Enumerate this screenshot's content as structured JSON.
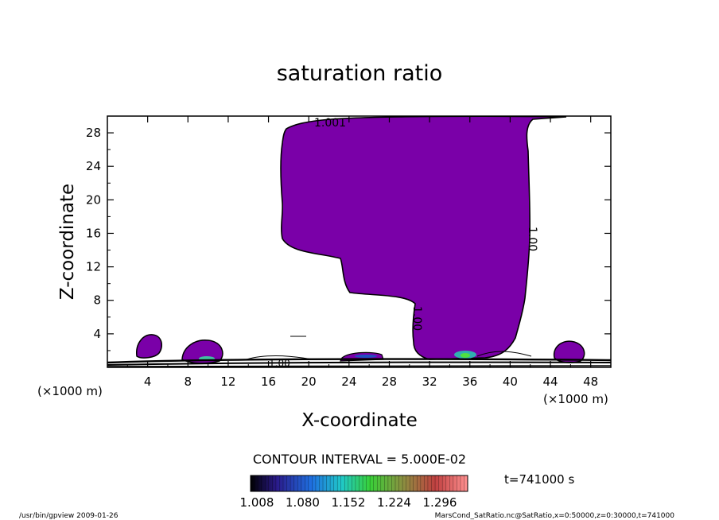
{
  "chart_data": {
    "type": "contour",
    "title": "saturation ratio",
    "xlabel": "X-coordinate",
    "ylabel": "Z-coordinate",
    "x_unit_label": "(×1000 m)",
    "y_unit_label": "(×1000 m)",
    "xlim": [
      0,
      50
    ],
    "ylim": [
      0,
      30
    ],
    "x_ticks": [
      4,
      8,
      12,
      16,
      20,
      24,
      28,
      32,
      36,
      40,
      44,
      48
    ],
    "y_ticks": [
      4,
      8,
      12,
      16,
      20,
      24,
      28
    ],
    "contour_interval_text": "CONTOUR INTERVAL = 5.000E-02",
    "contour_labels": [
      "1.001",
      "1.00",
      "1.00",
      "1.00"
    ],
    "colorbar_ticks": [
      "1.008",
      "1.080",
      "1.152",
      "1.224",
      "1.296"
    ],
    "fill_color": "#7a00a8",
    "time_text": "t=741000 s",
    "footer_left": "/usr/bin/gpview   2009-01-26",
    "footer_right": "MarsCond_SatRatio.nc@SatRatio,x=0:50000,z=0:30000,t=741000"
  }
}
